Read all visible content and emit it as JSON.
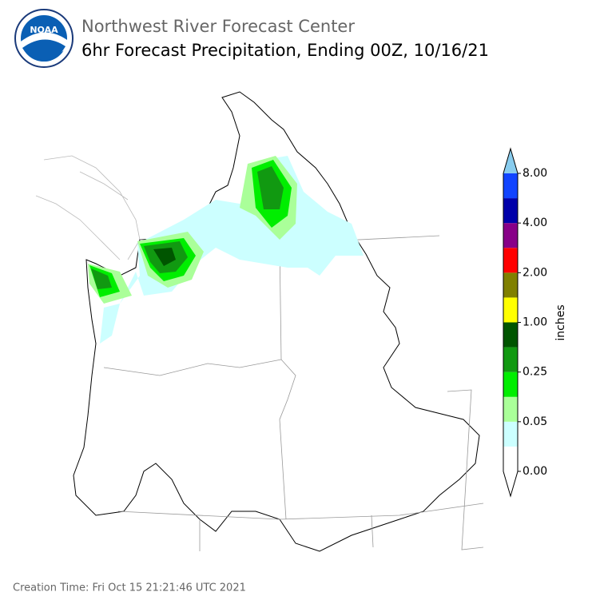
{
  "header": {
    "title": "Northwest River Forecast Center",
    "subtitle": "6hr Forecast Precipitation, Ending 00Z, 10/16/21",
    "logo_text": "NOAA"
  },
  "legend": {
    "label": "inches",
    "ticks": [
      "0.00",
      "0.05",
      "0.25",
      "1.00",
      "2.00",
      "4.00",
      "8.00"
    ],
    "colors": [
      "#ffffff",
      "#ccffff",
      "#aaff99",
      "#00ee00",
      "#119911",
      "#005500",
      "#ffff00",
      "#808000",
      "#ff0000",
      "#880088",
      "#0000aa",
      "#1144ff"
    ],
    "under_color": "#ffffff",
    "over_color": "#88ccee"
  },
  "footer": {
    "creation_time": "Creation Time: Fri Oct 15 21:21:46 UTC 2021"
  }
}
